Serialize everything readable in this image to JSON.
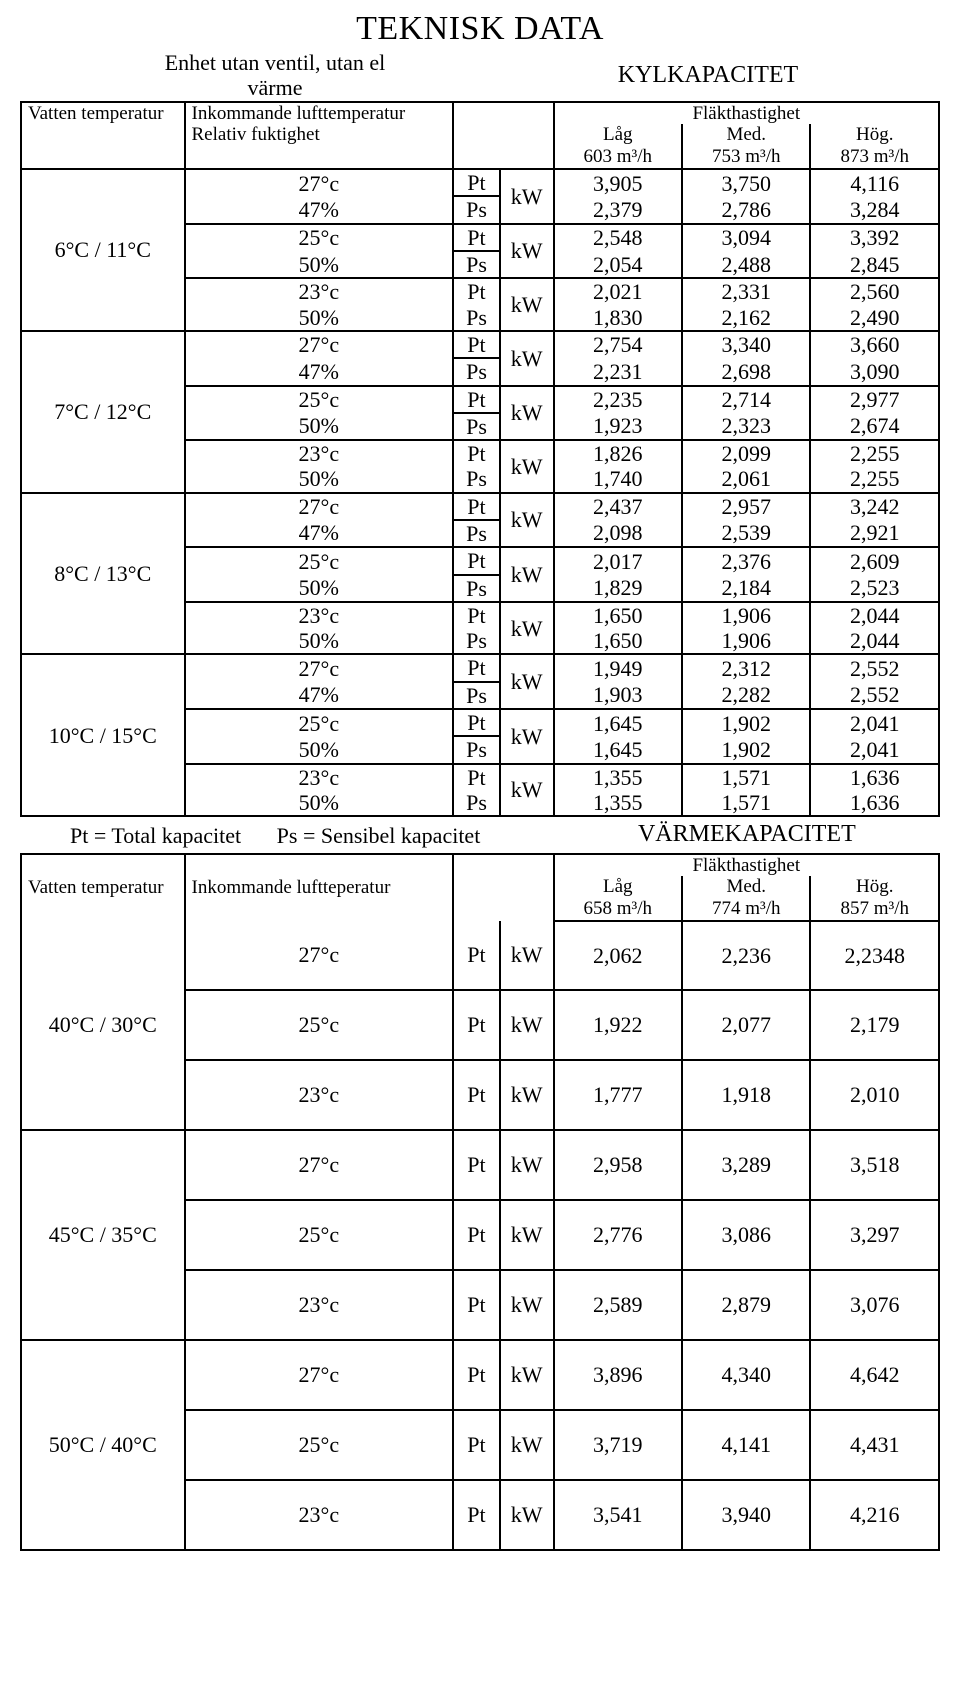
{
  "title": "TEKNISK DATA",
  "subtitle": "Enhet utan ventil, utan el värme",
  "cool_section": "KYLKAPACITET",
  "heat_section": "VÄRMEKAPACITET",
  "hdr": {
    "water": "Vatten temperatur",
    "air_cool": "Inkommande lufttemperatur",
    "air_heat": "Inkommande luftteperatur",
    "rh": "Relativ fuktighet",
    "fanspeed": "Fläkthastighet",
    "low": "Låg",
    "med": "Med.",
    "high": "Hög."
  },
  "cool_flows": {
    "low": "603 m³/h",
    "med": "753 m³/h",
    "high": "873 m³/h"
  },
  "heat_flows": {
    "low": "658 m³/h",
    "med": "774 m³/h",
    "high": "857 m³/h"
  },
  "legend": {
    "pt": "Pt = Total kapacitet",
    "ps": "Ps = Sensibel kapacitet"
  },
  "sym": {
    "pt": "Pt",
    "ps": "Ps",
    "kw": "kW"
  },
  "cool": [
    {
      "wt": "6°C / 11°C",
      "rows": [
        {
          "air": "27°c",
          "rh": "47%",
          "pt": [
            "3,905",
            "3,750",
            "4,116"
          ],
          "ps": [
            "2,379",
            "2,786",
            "3,284"
          ]
        },
        {
          "air": "25°c",
          "rh": "50%",
          "pt": [
            "2,548",
            "3,094",
            "3,392"
          ],
          "ps": [
            "2,054",
            "2,488",
            "2,845"
          ]
        },
        {
          "air": "23°c",
          "rh": "50%",
          "pt": [
            "2,021",
            "2,331",
            "2,560"
          ],
          "ps": [
            "1,830",
            "2,162",
            "2,490"
          ]
        }
      ]
    },
    {
      "wt": "7°C / 12°C",
      "rows": [
        {
          "air": "27°c",
          "rh": "47%",
          "pt": [
            "2,754",
            "3,340",
            "3,660"
          ],
          "ps": [
            "2,231",
            "2,698",
            "3,090"
          ]
        },
        {
          "air": "25°c",
          "rh": "50%",
          "pt": [
            "2,235",
            "2,714",
            "2,977"
          ],
          "ps": [
            "1,923",
            "2,323",
            "2,674"
          ]
        },
        {
          "air": "23°c",
          "rh": "50%",
          "pt": [
            "1,826",
            "2,099",
            "2,255"
          ],
          "ps": [
            "1,740",
            "2,061",
            "2,255"
          ]
        }
      ]
    },
    {
      "wt": "8°C / 13°C",
      "rows": [
        {
          "air": "27°c",
          "rh": "47%",
          "pt": [
            "2,437",
            "2,957",
            "3,242"
          ],
          "ps": [
            "2,098",
            "2,539",
            "2,921"
          ]
        },
        {
          "air": "25°c",
          "rh": "50%",
          "pt": [
            "2,017",
            "2,376",
            "2,609"
          ],
          "ps": [
            "1,829",
            "2,184",
            "2,523"
          ]
        },
        {
          "air": "23°c",
          "rh": "50%",
          "pt": [
            "1,650",
            "1,906",
            "2,044"
          ],
          "ps": [
            "1,650",
            "1,906",
            "2,044"
          ]
        }
      ]
    },
    {
      "wt": "10°C / 15°C",
      "rows": [
        {
          "air": "27°c",
          "rh": "47%",
          "pt": [
            "1,949",
            "2,312",
            "2,552"
          ],
          "ps": [
            "1,903",
            "2,282",
            "2,552"
          ]
        },
        {
          "air": "25°c",
          "rh": "50%",
          "pt": [
            "1,645",
            "1,902",
            "2,041"
          ],
          "ps": [
            "1,645",
            "1,902",
            "2,041"
          ]
        },
        {
          "air": "23°c",
          "rh": "50%",
          "pt": [
            "1,355",
            "1,571",
            "1,636"
          ],
          "ps": [
            "1,355",
            "1,571",
            "1,636"
          ]
        }
      ]
    }
  ],
  "heat": [
    {
      "wt": "40°C / 30°C",
      "rows": [
        {
          "air": "27°c",
          "v": [
            "2,062",
            "2,236",
            "2,2348"
          ]
        },
        {
          "air": "25°c",
          "v": [
            "1,922",
            "2,077",
            "2,179"
          ]
        },
        {
          "air": "23°c",
          "v": [
            "1,777",
            "1,918",
            "2,010"
          ]
        }
      ]
    },
    {
      "wt": "45°C / 35°C",
      "rows": [
        {
          "air": "27°c",
          "v": [
            "2,958",
            "3,289",
            "3,518"
          ]
        },
        {
          "air": "25°c",
          "v": [
            "2,776",
            "3,086",
            "3,297"
          ]
        },
        {
          "air": "23°c",
          "v": [
            "2,589",
            "2,879",
            "3,076"
          ]
        }
      ]
    },
    {
      "wt": "50°C / 40°C",
      "rows": [
        {
          "air": "27°c",
          "v": [
            "3,896",
            "4,340",
            "4,642"
          ]
        },
        {
          "air": "25°c",
          "v": [
            "3,719",
            "4,141",
            "4,431"
          ]
        },
        {
          "air": "23°c",
          "v": [
            "3,541",
            "3,940",
            "4,216"
          ]
        }
      ]
    }
  ]
}
